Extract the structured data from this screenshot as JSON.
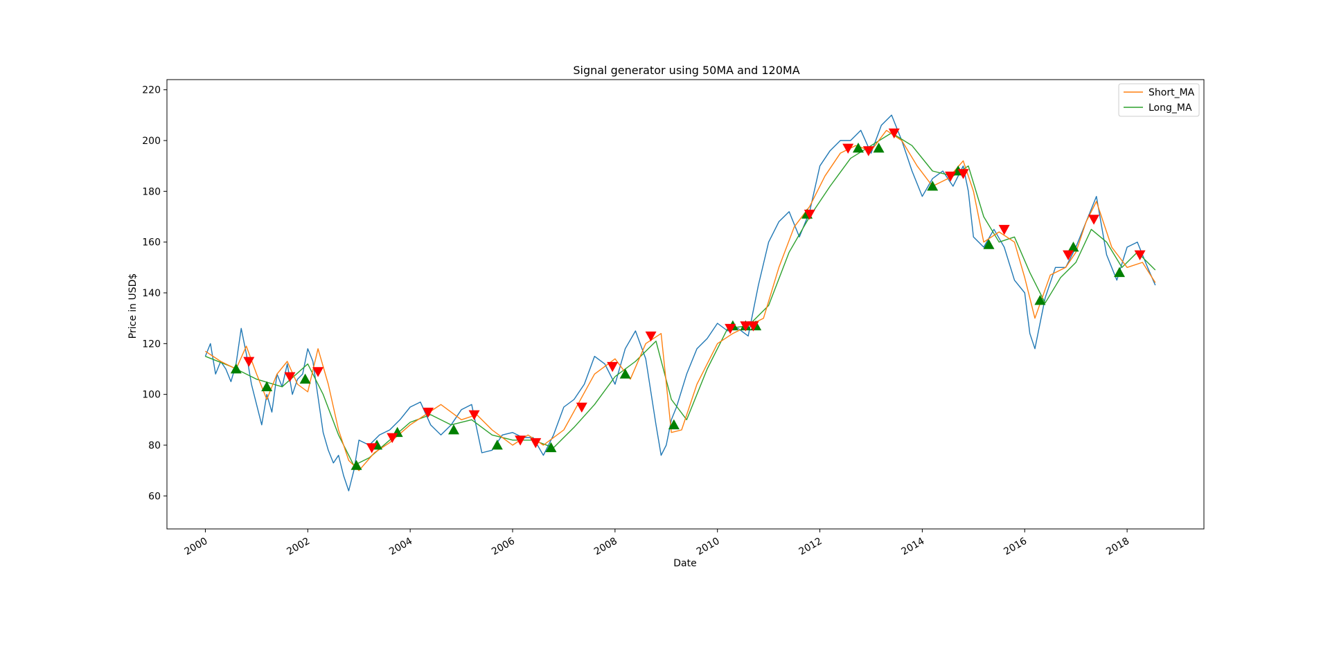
{
  "chart_data": {
    "type": "line",
    "title": "Signal generator using 50MA and 120MA",
    "xlabel": "Date",
    "ylabel": "Price in USD$",
    "xlim": [
      1999.25,
      2019.5
    ],
    "ylim": [
      47,
      224
    ],
    "x_ticks": [
      "2000",
      "2002",
      "2004",
      "2006",
      "2008",
      "2010",
      "2012",
      "2014",
      "2016",
      "2018"
    ],
    "y_ticks": [
      60,
      80,
      100,
      120,
      140,
      160,
      180,
      200,
      220
    ],
    "grid": false,
    "legend_position": "top-right",
    "legend": [
      "Short_MA",
      "Long_MA"
    ],
    "colors": {
      "price": "#1f77b4",
      "short_ma": "#ff7f0e",
      "long_ma": "#2ca02c",
      "buy": "#008000",
      "sell": "#ff0000"
    },
    "price_series": {
      "x": [
        2000.0,
        2000.1,
        2000.2,
        2000.3,
        2000.4,
        2000.5,
        2000.6,
        2000.7,
        2000.8,
        2000.9,
        2001.0,
        2001.1,
        2001.2,
        2001.3,
        2001.4,
        2001.5,
        2001.6,
        2001.7,
        2001.8,
        2001.9,
        2002.0,
        2002.1,
        2002.2,
        2002.3,
        2002.4,
        2002.5,
        2002.6,
        2002.7,
        2002.8,
        2002.9,
        2003.0,
        2003.2,
        2003.4,
        2003.6,
        2003.8,
        2004.0,
        2004.2,
        2004.4,
        2004.6,
        2004.8,
        2005.0,
        2005.2,
        2005.4,
        2005.6,
        2005.8,
        2006.0,
        2006.2,
        2006.4,
        2006.6,
        2006.8,
        2007.0,
        2007.2,
        2007.4,
        2007.6,
        2007.8,
        2008.0,
        2008.2,
        2008.4,
        2008.6,
        2008.8,
        2008.9,
        2009.0,
        2009.1,
        2009.2,
        2009.4,
        2009.6,
        2009.8,
        2010.0,
        2010.2,
        2010.4,
        2010.6,
        2010.8,
        2011.0,
        2011.2,
        2011.4,
        2011.6,
        2011.8,
        2012.0,
        2012.2,
        2012.4,
        2012.6,
        2012.8,
        2013.0,
        2013.2,
        2013.4,
        2013.6,
        2013.8,
        2014.0,
        2014.2,
        2014.4,
        2014.6,
        2014.8,
        2014.9,
        2015.0,
        2015.2,
        2015.4,
        2015.6,
        2015.8,
        2016.0,
        2016.1,
        2016.2,
        2016.4,
        2016.6,
        2016.8,
        2017.0,
        2017.2,
        2017.4,
        2017.6,
        2017.8,
        2018.0,
        2018.2,
        2018.4,
        2018.55
      ],
      "y": [
        115,
        120,
        108,
        113,
        110,
        105,
        112,
        126,
        116,
        104,
        96,
        88,
        100,
        93,
        108,
        103,
        112,
        100,
        106,
        108,
        118,
        113,
        99,
        85,
        78,
        73,
        76,
        68,
        62,
        70,
        82,
        80,
        84,
        86,
        90,
        95,
        97,
        88,
        84,
        88,
        94,
        96,
        77,
        78,
        84,
        85,
        83,
        83,
        76,
        84,
        95,
        98,
        104,
        115,
        112,
        104,
        118,
        125,
        114,
        88,
        76,
        80,
        90,
        95,
        108,
        118,
        122,
        128,
        125,
        126,
        123,
        143,
        160,
        168,
        172,
        162,
        172,
        190,
        196,
        200,
        200,
        204,
        195,
        206,
        210,
        200,
        188,
        178,
        185,
        188,
        182,
        190,
        180,
        162,
        158,
        165,
        158,
        145,
        140,
        124,
        118,
        138,
        150,
        150,
        158,
        168,
        178,
        155,
        145,
        158,
        160,
        150,
        143
      ]
    },
    "short_ma": {
      "x": [
        2000.0,
        2000.3,
        2000.6,
        2000.8,
        2001.0,
        2001.2,
        2001.4,
        2001.6,
        2001.8,
        2002.0,
        2002.2,
        2002.4,
        2002.6,
        2002.8,
        2003.0,
        2003.3,
        2003.6,
        2004.0,
        2004.3,
        2004.6,
        2005.0,
        2005.3,
        2005.6,
        2006.0,
        2006.3,
        2006.6,
        2007.0,
        2007.3,
        2007.6,
        2008.0,
        2008.3,
        2008.6,
        2008.9,
        2009.1,
        2009.3,
        2009.6,
        2010.0,
        2010.3,
        2010.6,
        2010.9,
        2011.2,
        2011.5,
        2011.8,
        2012.1,
        2012.4,
        2012.7,
        2013.0,
        2013.3,
        2013.6,
        2013.9,
        2014.2,
        2014.5,
        2014.8,
        2015.0,
        2015.2,
        2015.5,
        2015.8,
        2016.0,
        2016.2,
        2016.5,
        2016.8,
        2017.0,
        2017.2,
        2017.4,
        2017.7,
        2018.0,
        2018.3,
        2018.55
      ],
      "y": [
        117,
        113,
        110,
        119,
        108,
        98,
        108,
        113,
        104,
        101,
        118,
        104,
        86,
        74,
        70,
        77,
        81,
        88,
        92,
        96,
        90,
        92,
        86,
        80,
        84,
        80,
        86,
        97,
        108,
        114,
        106,
        120,
        124,
        85,
        86,
        104,
        120,
        124,
        127,
        130,
        150,
        166,
        174,
        186,
        195,
        198,
        196,
        204,
        200,
        190,
        182,
        185,
        192,
        180,
        160,
        164,
        160,
        146,
        130,
        147,
        150,
        156,
        168,
        176,
        158,
        150,
        152,
        144
      ]
    },
    "long_ma": {
      "x": [
        2000.0,
        2000.5,
        2001.0,
        2001.5,
        2002.0,
        2002.3,
        2002.6,
        2002.9,
        2003.2,
        2003.6,
        2004.0,
        2004.4,
        2004.8,
        2005.2,
        2005.6,
        2006.0,
        2006.4,
        2006.8,
        2007.2,
        2007.6,
        2008.0,
        2008.4,
        2008.8,
        2009.1,
        2009.4,
        2009.8,
        2010.2,
        2010.6,
        2011.0,
        2011.4,
        2011.8,
        2012.2,
        2012.6,
        2013.0,
        2013.4,
        2013.8,
        2014.2,
        2014.6,
        2014.9,
        2015.2,
        2015.5,
        2015.8,
        2016.1,
        2016.4,
        2016.7,
        2017.0,
        2017.3,
        2017.6,
        2017.9,
        2018.2,
        2018.55
      ],
      "y": [
        115,
        111,
        106,
        103,
        112,
        100,
        84,
        72,
        75,
        82,
        89,
        92,
        88,
        90,
        84,
        82,
        82,
        79,
        87,
        96,
        107,
        113,
        121,
        98,
        90,
        110,
        126,
        127,
        135,
        156,
        170,
        182,
        193,
        198,
        203,
        198,
        188,
        186,
        190,
        170,
        160,
        162,
        148,
        136,
        146,
        152,
        165,
        160,
        150,
        156,
        149
      ]
    },
    "buy_signals": {
      "x": [
        2000.6,
        2001.2,
        2001.95,
        2002.95,
        2003.35,
        2003.75,
        2004.85,
        2005.7,
        2006.75,
        2008.2,
        2009.15,
        2010.3,
        2010.55,
        2010.75,
        2011.75,
        2012.75,
        2013.15,
        2014.2,
        2014.7,
        2015.3,
        2016.3,
        2016.95,
        2017.85
      ],
      "y": [
        110,
        103,
        106,
        72,
        80,
        85,
        86,
        80,
        79,
        108,
        88,
        127,
        127,
        127,
        171,
        197,
        197,
        182,
        188,
        159,
        137,
        158,
        148
      ]
    },
    "sell_signals": {
      "x": [
        2000.85,
        2001.65,
        2002.2,
        2003.25,
        2003.65,
        2004.35,
        2005.25,
        2006.15,
        2006.45,
        2007.35,
        2007.95,
        2008.7,
        2010.25,
        2010.55,
        2010.7,
        2011.8,
        2012.55,
        2012.95,
        2013.45,
        2014.55,
        2014.8,
        2015.6,
        2016.85,
        2017.35,
        2018.25
      ],
      "y": [
        113,
        107,
        109,
        79,
        83,
        93,
        92,
        82,
        81,
        95,
        111,
        123,
        126,
        127,
        127,
        171,
        197,
        196,
        203,
        186,
        187,
        165,
        155,
        169,
        155
      ]
    }
  }
}
